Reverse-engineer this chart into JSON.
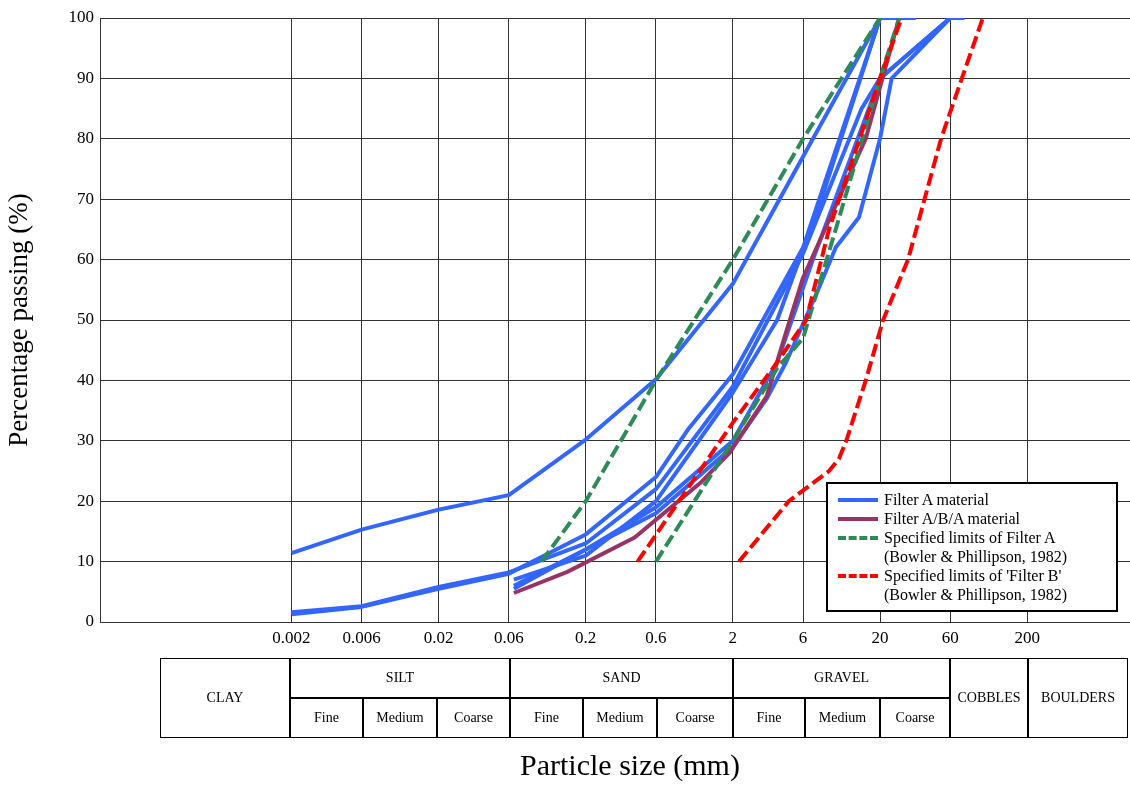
{
  "chart_data": {
    "type": "line",
    "xlabel": "Particle size (mm)",
    "ylabel": "Percentage passing (%)",
    "log": "x",
    "xlim": [
      0.0001,
      1000
    ],
    "xticks": [
      0.002,
      0.006,
      0.02,
      0.06,
      0.2,
      0.6,
      2,
      6,
      20,
      60,
      200
    ],
    "ylim": [
      0,
      100
    ],
    "yticks": [
      0,
      10,
      20,
      30,
      40,
      50,
      60,
      70,
      80,
      90,
      100
    ],
    "grid": true,
    "legend": "bottom right",
    "marker": "none",
    "series": [
      {
        "name": "Filter A material",
        "color": "#3366ff",
        "line_style": "solid",
        "x": [
          0.002,
          0.006,
          0.02,
          0.06,
          0.2,
          0.6,
          2,
          7,
          20
        ],
        "values": [
          11.4,
          15.3,
          18.6,
          21,
          30.2,
          40.2,
          56,
          80,
          100
        ]
      },
      {
        "color": "#3366ff",
        "line_style": "solid",
        "x": [
          0.002,
          0.006,
          0.02,
          0.06,
          0.2,
          0.6,
          1,
          2,
          6,
          20,
          35
        ],
        "values": [
          1.3,
          2.5,
          5.5,
          8,
          14.5,
          24,
          32,
          41,
          62,
          100,
          100
        ]
      },
      {
        "color": "#3366ff",
        "line_style": "solid",
        "x": [
          0.002,
          0.006,
          0.02,
          0.06,
          0.2,
          0.6,
          2,
          6,
          15,
          20,
          60,
          75
        ],
        "values": [
          1.6,
          2.6,
          5.8,
          8.2,
          13,
          22,
          39,
          61,
          85,
          90,
          100,
          100
        ]
      },
      {
        "color": "#3366ff",
        "line_style": "solid",
        "x": [
          0.065,
          0.2,
          0.6,
          2,
          3.4,
          4.6,
          7.6,
          10,
          14.4,
          20,
          24,
          60
        ],
        "values": [
          6,
          12,
          18,
          29,
          37,
          43,
          55,
          62,
          67,
          80,
          90,
          100
        ]
      },
      {
        "color": "#3366ff",
        "line_style": "solid",
        "x": [
          0.065,
          0.2,
          0.6,
          2,
          4,
          8,
          20
        ],
        "values": [
          7,
          11,
          20,
          38,
          50,
          70,
          100
        ]
      },
      {
        "color": "#3366ff",
        "line_style": "solid",
        "x": [
          0.065,
          0.2,
          0.6,
          2,
          4,
          7,
          20,
          60
        ],
        "values": [
          5.5,
          12,
          19,
          30,
          43,
          60,
          90,
          100
        ]
      },
      {
        "name": "Filter A/B/A material",
        "color": "#993366",
        "line_style": "solid",
        "x": [
          0.065,
          0.15,
          0.43,
          1.2,
          1.9,
          3.4,
          4.6,
          6,
          16,
          27
        ],
        "values": [
          4.8,
          8.3,
          14,
          23,
          28,
          37.4,
          48,
          57,
          80,
          100
        ]
      },
      {
        "name": "Specified limits of Filter A (Bowler & Phillipson, 1982)",
        "color": "#2e8b57",
        "line_style": "dashed",
        "x": [
          0.1,
          0.2,
          0.6,
          2,
          6,
          20
        ],
        "values": [
          10,
          20,
          40,
          60,
          80,
          100
        ]
      },
      {
        "color": "#2e8b57",
        "line_style": "dashed",
        "x": [
          0.6,
          2,
          4,
          6,
          10,
          20,
          27
        ],
        "values": [
          10,
          30,
          42,
          47,
          65,
          90,
          100
        ]
      },
      {
        "name": "Specified limits of 'Filter B' (Bowler & Phillipson, 1982)",
        "color": "#ff0000",
        "line_style": "dashed",
        "x": [
          0.45,
          2,
          4,
          6.3,
          9,
          20,
          28
        ],
        "values": [
          10,
          33,
          43,
          50,
          65,
          90,
          100
        ]
      },
      {
        "color": "#ff0000",
        "line_style": "dashed",
        "x": [
          2.2,
          4.8,
          9,
          10.5,
          11.8,
          16,
          21,
          31,
          52,
          72,
          100
        ],
        "values": [
          10,
          20,
          25,
          27,
          30,
          40,
          50,
          60,
          80,
          90,
          100
        ]
      }
    ],
    "annotations": [
      "CLAY",
      "SILT",
      "SAND",
      "GRAVEL",
      "COBBLES",
      "BOULDERS",
      "Fine",
      "Medium",
      "Coarse",
      "Fine",
      "Medium",
      "Coarse",
      "Fine",
      "Medium",
      "Coarse"
    ]
  }
}
